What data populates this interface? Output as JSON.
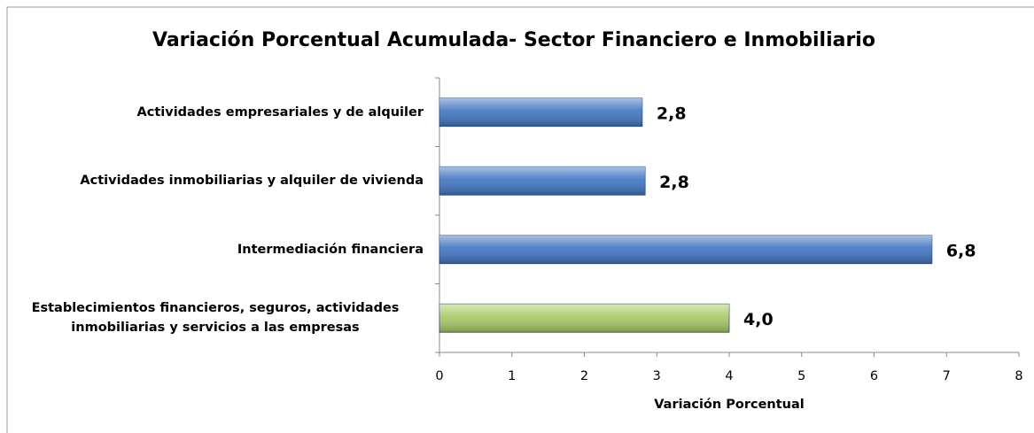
{
  "chart_data": {
    "type": "bar",
    "orientation": "horizontal",
    "title": "Variación Porcentual Acumulada- Sector Financiero e Inmobiliario",
    "xlabel": "Variación Porcentual",
    "categories": [
      "Actividades empresariales y de alquiler",
      "Actividades inmobiliarias y alquiler de vivienda",
      "Intermediación financiera",
      "Establecimientos financieros, seguros, actividades inmobiliarias y servicios a las empresas"
    ],
    "values": [
      2.8,
      2.84,
      6.8,
      4.0
    ],
    "value_labels": [
      "2,8",
      "2,8",
      "6,8",
      "4,0"
    ],
    "colors": [
      "#3f74c2",
      "#3f74c2",
      "#3f74c2",
      "#a6c964"
    ],
    "xlim": [
      0,
      8
    ],
    "xticks": [
      0,
      1,
      2,
      3,
      4,
      5,
      6,
      7,
      8
    ],
    "grid": false
  }
}
